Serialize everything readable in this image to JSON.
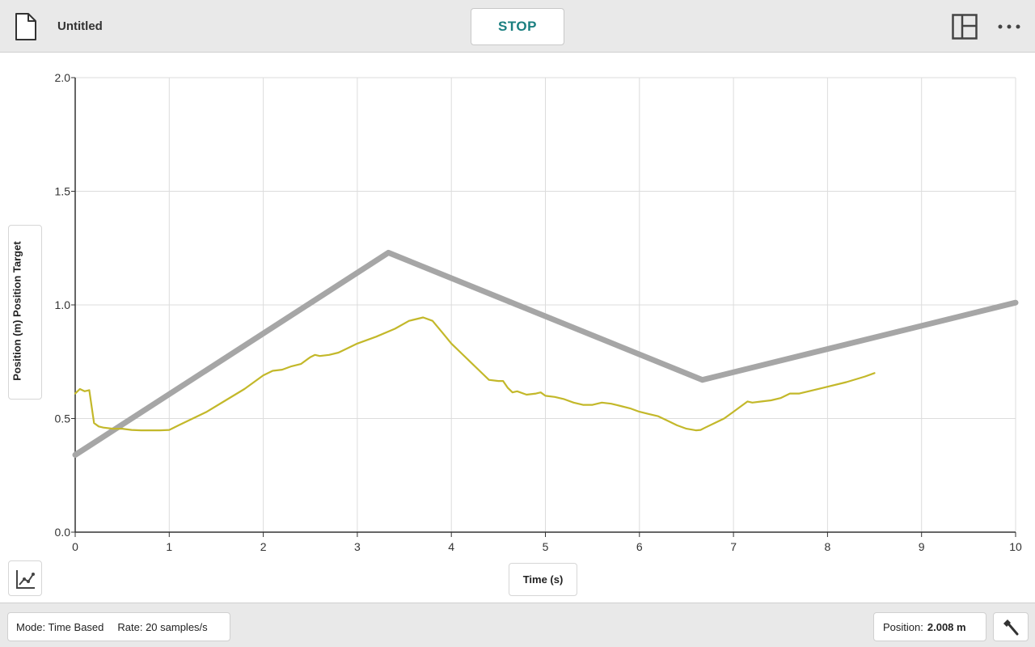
{
  "header": {
    "title": "Untitled",
    "stop_label": "STOP",
    "icons": {
      "document": "document-icon",
      "layout": "layout-icon",
      "more": "more-options-icon"
    }
  },
  "graph": {
    "y_axis_label": "Position (m) Position Target",
    "x_axis_label": "Time (s)",
    "tools_icon": "graph-tools-icon"
  },
  "chart_data": {
    "type": "line",
    "xlabel": "Time (s)",
    "ylabel": "Position (m) Position Target",
    "xlim": [
      0,
      10
    ],
    "ylim": [
      0,
      2
    ],
    "x_ticks": [
      0,
      1,
      2,
      3,
      4,
      5,
      6,
      7,
      8,
      9,
      10
    ],
    "y_ticks": [
      0.0,
      0.5,
      1.0,
      1.5,
      2.0
    ],
    "x_tick_labels": [
      "0",
      "1",
      "2",
      "3",
      "4",
      "5",
      "6",
      "7",
      "8",
      "9",
      "10"
    ],
    "y_tick_labels": [
      "0.0",
      "0.5",
      "1.0",
      "1.5",
      "2.0"
    ],
    "grid": true,
    "series": [
      {
        "name": "Position Target",
        "color": "#a6a6a6",
        "points": [
          [
            0,
            0.34
          ],
          [
            3.33,
            1.23
          ],
          [
            6.67,
            0.67
          ],
          [
            10,
            1.01
          ]
        ]
      },
      {
        "name": "Position",
        "color": "#c3b82a",
        "points": [
          [
            0,
            0.61
          ],
          [
            0.05,
            0.63
          ],
          [
            0.1,
            0.62
          ],
          [
            0.15,
            0.625
          ],
          [
            0.2,
            0.48
          ],
          [
            0.25,
            0.465
          ],
          [
            0.3,
            0.46
          ],
          [
            0.4,
            0.455
          ],
          [
            0.5,
            0.455
          ],
          [
            0.6,
            0.45
          ],
          [
            0.7,
            0.448
          ],
          [
            0.8,
            0.448
          ],
          [
            0.9,
            0.448
          ],
          [
            1.0,
            0.45
          ],
          [
            1.1,
            0.47
          ],
          [
            1.2,
            0.49
          ],
          [
            1.4,
            0.53
          ],
          [
            1.6,
            0.58
          ],
          [
            1.8,
            0.63
          ],
          [
            2.0,
            0.69
          ],
          [
            2.1,
            0.71
          ],
          [
            2.2,
            0.715
          ],
          [
            2.3,
            0.73
          ],
          [
            2.4,
            0.74
          ],
          [
            2.5,
            0.77
          ],
          [
            2.55,
            0.78
          ],
          [
            2.6,
            0.775
          ],
          [
            2.7,
            0.78
          ],
          [
            2.8,
            0.79
          ],
          [
            2.9,
            0.81
          ],
          [
            3.0,
            0.83
          ],
          [
            3.2,
            0.86
          ],
          [
            3.4,
            0.895
          ],
          [
            3.55,
            0.93
          ],
          [
            3.7,
            0.945
          ],
          [
            3.8,
            0.93
          ],
          [
            3.9,
            0.88
          ],
          [
            4.0,
            0.83
          ],
          [
            4.1,
            0.79
          ],
          [
            4.2,
            0.75
          ],
          [
            4.3,
            0.71
          ],
          [
            4.4,
            0.67
          ],
          [
            4.5,
            0.665
          ],
          [
            4.55,
            0.665
          ],
          [
            4.6,
            0.635
          ],
          [
            4.65,
            0.615
          ],
          [
            4.7,
            0.62
          ],
          [
            4.8,
            0.605
          ],
          [
            4.9,
            0.61
          ],
          [
            4.95,
            0.615
          ],
          [
            5.0,
            0.6
          ],
          [
            5.1,
            0.595
          ],
          [
            5.2,
            0.585
          ],
          [
            5.3,
            0.57
          ],
          [
            5.4,
            0.56
          ],
          [
            5.5,
            0.56
          ],
          [
            5.6,
            0.57
          ],
          [
            5.7,
            0.565
          ],
          [
            5.8,
            0.555
          ],
          [
            5.9,
            0.545
          ],
          [
            6.0,
            0.53
          ],
          [
            6.1,
            0.52
          ],
          [
            6.2,
            0.51
          ],
          [
            6.3,
            0.49
          ],
          [
            6.4,
            0.47
          ],
          [
            6.5,
            0.455
          ],
          [
            6.6,
            0.448
          ],
          [
            6.65,
            0.45
          ],
          [
            6.7,
            0.46
          ],
          [
            6.8,
            0.48
          ],
          [
            6.9,
            0.5
          ],
          [
            7.0,
            0.53
          ],
          [
            7.1,
            0.56
          ],
          [
            7.15,
            0.575
          ],
          [
            7.2,
            0.57
          ],
          [
            7.3,
            0.575
          ],
          [
            7.4,
            0.58
          ],
          [
            7.5,
            0.59
          ],
          [
            7.6,
            0.61
          ],
          [
            7.7,
            0.61
          ],
          [
            7.8,
            0.62
          ],
          [
            8.0,
            0.64
          ],
          [
            8.2,
            0.66
          ],
          [
            8.4,
            0.685
          ],
          [
            8.5,
            0.7
          ]
        ]
      }
    ]
  },
  "footer": {
    "mode": "Mode: Time Based",
    "rate": "Rate: 20 samples/s",
    "position_label": "Position:",
    "position_value": "2.008 m",
    "tool_icon": "wrench-icon"
  }
}
